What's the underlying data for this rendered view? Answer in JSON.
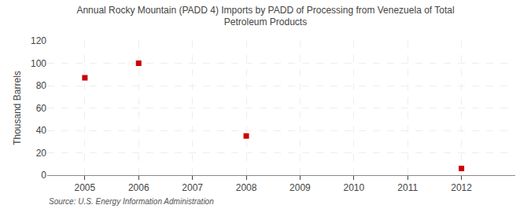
{
  "chart_data": {
    "type": "scatter",
    "title": "Annual Rocky Mountain (PADD 4) Imports by PADD of Processing from Venezuela of Total\nPetroleum Products",
    "ylabel": "Thousand Barrels",
    "x": [
      2005,
      2006,
      2008,
      2012
    ],
    "values": [
      87,
      100,
      35,
      6
    ],
    "color": "#cc0000",
    "marker": "square",
    "xlim": [
      2004.3,
      2013.0
    ],
    "xticks": [
      2005,
      2006,
      2007,
      2008,
      2009,
      2010,
      2011,
      2012
    ],
    "ylim": [
      0,
      120
    ],
    "yticks": [
      0,
      20,
      40,
      60,
      80,
      100,
      120
    ],
    "grid": true,
    "annotations": [
      "Source: U.S. Energy Information Administration"
    ]
  }
}
